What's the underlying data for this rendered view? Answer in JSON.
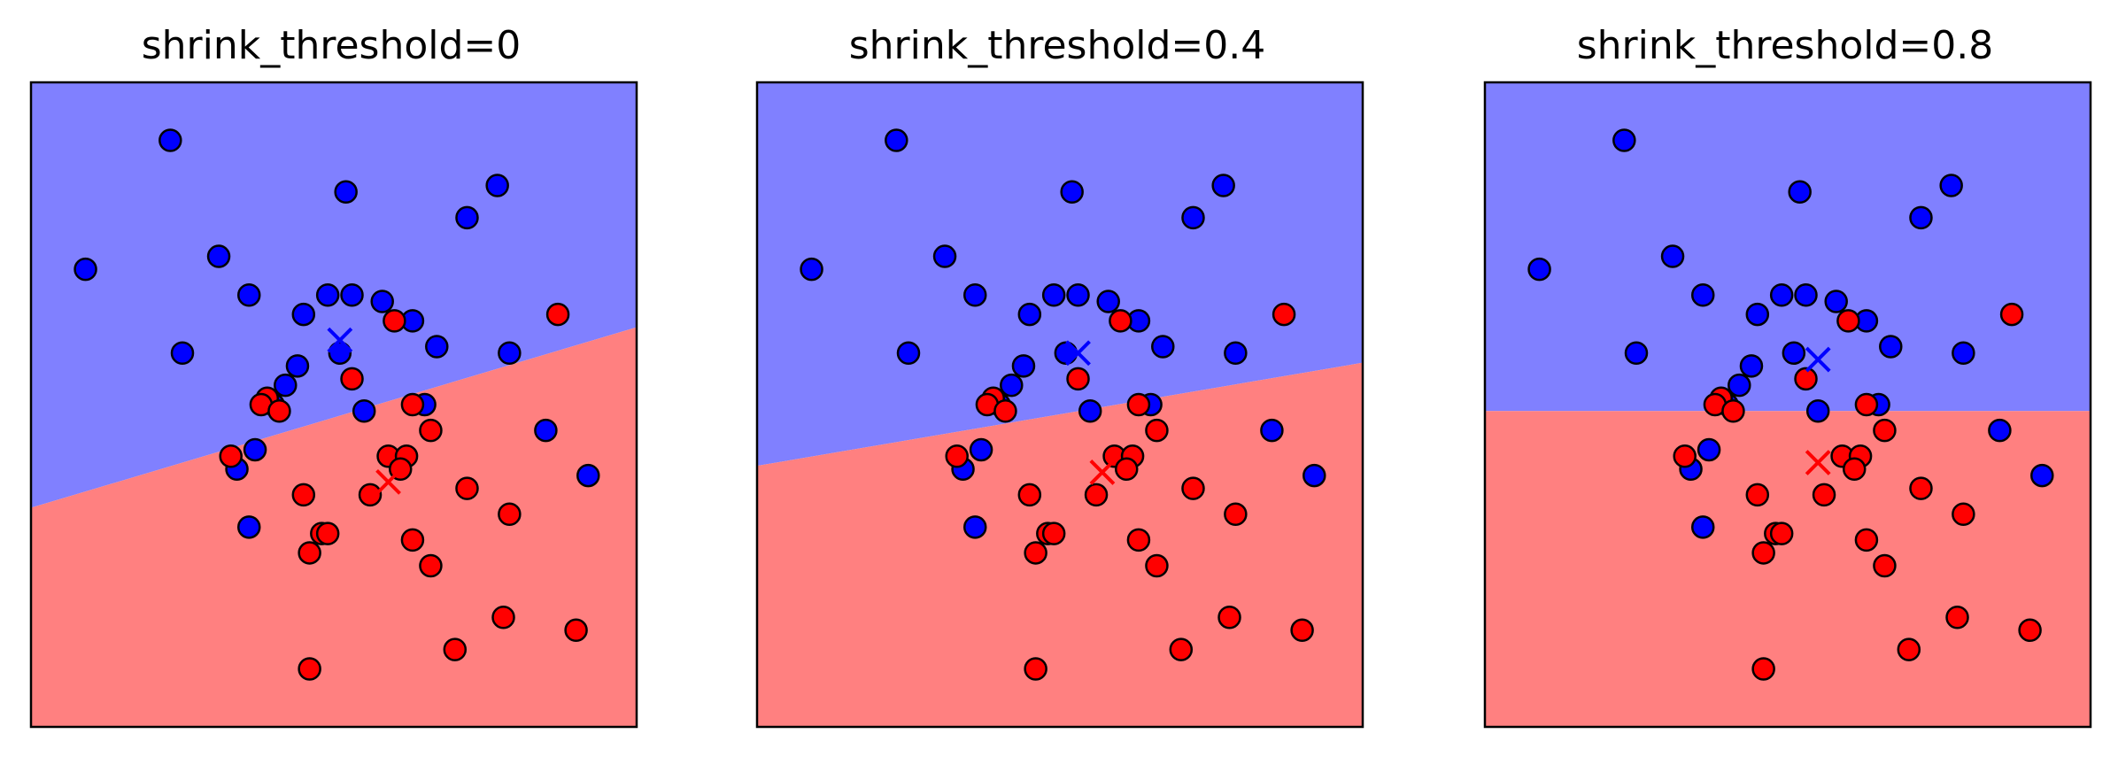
{
  "colors": {
    "class0_region": "#8080ff",
    "class1_region": "#ff8080",
    "class0_point": "#0000ff",
    "class1_point": "#ff0000",
    "point_edge": "#000000",
    "frame": "#000000"
  },
  "chart_data": [
    {
      "type": "scatter",
      "title": "shrink_threshold=0",
      "grid": false,
      "xlim": [
        0,
        100
      ],
      "ylim": [
        0,
        100
      ],
      "boundary": [
        [
          0,
          34.0
        ],
        [
          100,
          62.0
        ]
      ],
      "centroids": [
        {
          "class": 0,
          "x": 51,
          "y": 60.0
        },
        {
          "class": 1,
          "x": 59,
          "y": 38.0
        }
      ],
      "series": [
        {
          "class": 0,
          "points": [
            [
              23,
              91
            ],
            [
              52,
              83
            ],
            [
              77,
              84
            ],
            [
              72,
              79
            ],
            [
              9,
              71
            ],
            [
              31,
              73
            ],
            [
              36,
              67
            ],
            [
              49,
              67
            ],
            [
              53,
              67
            ],
            [
              58,
              66
            ],
            [
              45,
              64
            ],
            [
              63,
              63
            ],
            [
              51,
              58
            ],
            [
              67,
              59
            ],
            [
              25,
              58
            ],
            [
              79,
              58
            ],
            [
              44,
              56
            ],
            [
              42,
              53
            ],
            [
              40,
              50
            ],
            [
              55,
              49
            ],
            [
              65,
              50
            ],
            [
              37,
              43
            ],
            [
              85,
              46
            ],
            [
              34,
              40
            ],
            [
              92,
              39
            ],
            [
              36,
              31
            ]
          ]
        },
        {
          "class": 1,
          "points": [
            [
              87,
              64
            ],
            [
              60,
              63
            ],
            [
              53,
              54
            ],
            [
              39,
              51
            ],
            [
              38,
              50
            ],
            [
              63,
              50
            ],
            [
              41,
              49
            ],
            [
              66,
              46
            ],
            [
              33,
              42
            ],
            [
              59,
              42
            ],
            [
              62,
              42
            ],
            [
              61,
              40
            ],
            [
              45,
              36
            ],
            [
              56,
              36
            ],
            [
              72,
              37
            ],
            [
              79,
              33
            ],
            [
              48,
              30
            ],
            [
              49,
              30
            ],
            [
              63,
              29
            ],
            [
              46,
              27
            ],
            [
              66,
              25
            ],
            [
              78,
              17
            ],
            [
              90,
              15
            ],
            [
              70,
              12
            ],
            [
              46,
              9
            ]
          ]
        }
      ]
    },
    {
      "type": "scatter",
      "title": "shrink_threshold=0.4",
      "grid": false,
      "xlim": [
        0,
        100
      ],
      "ylim": [
        0,
        100
      ],
      "boundary": [
        [
          0,
          40.5
        ],
        [
          100,
          56.5
        ]
      ],
      "centroids": [
        {
          "class": 0,
          "x": 53,
          "y": 58.0
        },
        {
          "class": 1,
          "x": 57,
          "y": 39.5
        }
      ],
      "series": [
        {
          "class": 0,
          "points": [
            [
              23,
              91
            ],
            [
              52,
              83
            ],
            [
              77,
              84
            ],
            [
              72,
              79
            ],
            [
              9,
              71
            ],
            [
              31,
              73
            ],
            [
              36,
              67
            ],
            [
              49,
              67
            ],
            [
              53,
              67
            ],
            [
              58,
              66
            ],
            [
              45,
              64
            ],
            [
              63,
              63
            ],
            [
              51,
              58
            ],
            [
              67,
              59
            ],
            [
              25,
              58
            ],
            [
              79,
              58
            ],
            [
              44,
              56
            ],
            [
              42,
              53
            ],
            [
              40,
              50
            ],
            [
              55,
              49
            ],
            [
              65,
              50
            ],
            [
              37,
              43
            ],
            [
              85,
              46
            ],
            [
              34,
              40
            ],
            [
              92,
              39
            ],
            [
              36,
              31
            ]
          ]
        },
        {
          "class": 1,
          "points": [
            [
              87,
              64
            ],
            [
              60,
              63
            ],
            [
              53,
              54
            ],
            [
              39,
              51
            ],
            [
              38,
              50
            ],
            [
              63,
              50
            ],
            [
              41,
              49
            ],
            [
              66,
              46
            ],
            [
              33,
              42
            ],
            [
              59,
              42
            ],
            [
              62,
              42
            ],
            [
              61,
              40
            ],
            [
              45,
              36
            ],
            [
              56,
              36
            ],
            [
              72,
              37
            ],
            [
              79,
              33
            ],
            [
              48,
              30
            ],
            [
              49,
              30
            ],
            [
              63,
              29
            ],
            [
              46,
              27
            ],
            [
              66,
              25
            ],
            [
              78,
              17
            ],
            [
              90,
              15
            ],
            [
              70,
              12
            ],
            [
              46,
              9
            ]
          ]
        }
      ]
    },
    {
      "type": "scatter",
      "title": "shrink_threshold=0.8",
      "grid": false,
      "xlim": [
        0,
        100
      ],
      "ylim": [
        0,
        100
      ],
      "boundary": [
        [
          0,
          49.0
        ],
        [
          100,
          49.0
        ]
      ],
      "centroids": [
        {
          "class": 0,
          "x": 55,
          "y": 57.0
        },
        {
          "class": 1,
          "x": 55,
          "y": 41.0
        }
      ],
      "series": [
        {
          "class": 0,
          "points": [
            [
              23,
              91
            ],
            [
              52,
              83
            ],
            [
              77,
              84
            ],
            [
              72,
              79
            ],
            [
              9,
              71
            ],
            [
              31,
              73
            ],
            [
              36,
              67
            ],
            [
              49,
              67
            ],
            [
              53,
              67
            ],
            [
              58,
              66
            ],
            [
              45,
              64
            ],
            [
              63,
              63
            ],
            [
              51,
              58
            ],
            [
              67,
              59
            ],
            [
              25,
              58
            ],
            [
              79,
              58
            ],
            [
              44,
              56
            ],
            [
              42,
              53
            ],
            [
              40,
              50
            ],
            [
              55,
              49
            ],
            [
              65,
              50
            ],
            [
              37,
              43
            ],
            [
              85,
              46
            ],
            [
              34,
              40
            ],
            [
              92,
              39
            ],
            [
              36,
              31
            ]
          ]
        },
        {
          "class": 1,
          "points": [
            [
              87,
              64
            ],
            [
              60,
              63
            ],
            [
              53,
              54
            ],
            [
              39,
              51
            ],
            [
              38,
              50
            ],
            [
              63,
              50
            ],
            [
              41,
              49
            ],
            [
              66,
              46
            ],
            [
              33,
              42
            ],
            [
              59,
              42
            ],
            [
              62,
              42
            ],
            [
              61,
              40
            ],
            [
              45,
              36
            ],
            [
              56,
              36
            ],
            [
              72,
              37
            ],
            [
              79,
              33
            ],
            [
              48,
              30
            ],
            [
              49,
              30
            ],
            [
              63,
              29
            ],
            [
              46,
              27
            ],
            [
              66,
              25
            ],
            [
              78,
              17
            ],
            [
              90,
              15
            ],
            [
              70,
              12
            ],
            [
              46,
              9
            ]
          ]
        }
      ]
    }
  ]
}
